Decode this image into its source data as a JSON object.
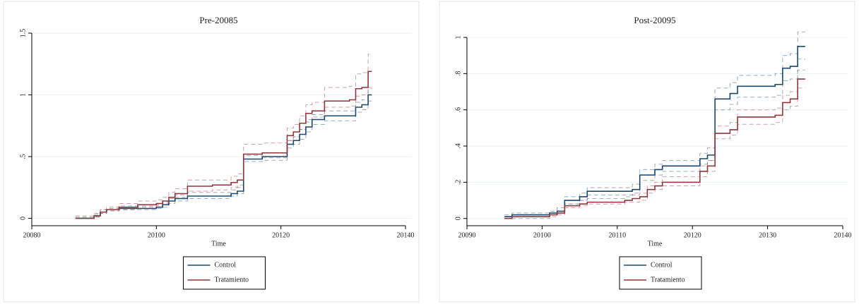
{
  "chart_data": [
    {
      "type": "line",
      "step": true,
      "title": "Pre-20085",
      "x_label": "Time",
      "xlim": [
        20080,
        20140
      ],
      "xticks": [
        20080,
        20100,
        20120,
        20140
      ],
      "ylim": [
        -0.06,
        1.5
      ],
      "yticks": [
        0,
        {
          "value": 0.5,
          "label": ".5"
        },
        1,
        1.5
      ],
      "grid": true,
      "x": [
        20087,
        20090,
        20091,
        20092,
        20094,
        20097,
        20100,
        20101,
        20102,
        20103,
        20105,
        20109,
        20112,
        20113,
        20114,
        20117,
        20121,
        20122,
        20123,
        20124,
        20125,
        20127,
        20131,
        20132,
        20133,
        20134,
        20134.6
      ],
      "series": [
        {
          "name": "Control",
          "color": "#1a476f",
          "values": [
            0,
            0.02,
            0.05,
            0.07,
            0.08,
            0.08,
            0.09,
            0.11,
            0.14,
            0.16,
            0.18,
            0.18,
            0.2,
            0.22,
            0.48,
            0.5,
            0.6,
            0.63,
            0.68,
            0.74,
            0.8,
            0.83,
            0.83,
            0.9,
            0.92,
            1.0,
            1.0
          ],
          "lower": [
            0,
            0.01,
            0.04,
            0.06,
            0.07,
            0.07,
            0.08,
            0.09,
            0.12,
            0.14,
            0.16,
            0.16,
            0.18,
            0.2,
            0.46,
            0.47,
            0.57,
            0.6,
            0.64,
            0.7,
            0.76,
            0.79,
            0.79,
            0.86,
            0.88,
            0.95,
            0.95
          ],
          "upper": [
            0.01,
            0.03,
            0.07,
            0.08,
            0.1,
            0.1,
            0.11,
            0.13,
            0.16,
            0.19,
            0.21,
            0.21,
            0.23,
            0.25,
            0.51,
            0.53,
            0.63,
            0.66,
            0.72,
            0.78,
            0.84,
            0.87,
            0.87,
            0.94,
            0.96,
            1.05,
            1.05
          ]
        },
        {
          "name": "Tratamiento",
          "color": "#90353b",
          "values": [
            0,
            0.02,
            0.05,
            0.07,
            0.09,
            0.11,
            0.12,
            0.14,
            0.17,
            0.2,
            0.26,
            0.27,
            0.29,
            0.31,
            0.52,
            0.53,
            0.67,
            0.7,
            0.77,
            0.85,
            0.87,
            0.95,
            0.96,
            1.05,
            1.06,
            1.19,
            1.19
          ],
          "lower": [
            0,
            0.01,
            0.04,
            0.06,
            0.07,
            0.09,
            0.1,
            0.12,
            0.14,
            0.17,
            0.22,
            0.23,
            0.25,
            0.27,
            0.48,
            0.49,
            0.63,
            0.66,
            0.72,
            0.8,
            0.82,
            0.9,
            0.91,
            0.99,
            1.0,
            1.06,
            1.06
          ],
          "upper": [
            0.02,
            0.04,
            0.07,
            0.09,
            0.12,
            0.14,
            0.15,
            0.17,
            0.21,
            0.24,
            0.31,
            0.31,
            0.34,
            0.36,
            0.6,
            0.61,
            0.73,
            0.76,
            0.83,
            0.92,
            0.94,
            1.06,
            1.07,
            1.17,
            1.18,
            1.33,
            1.33
          ]
        }
      ]
    },
    {
      "type": "line",
      "step": true,
      "title": "Post-20095",
      "x_label": "Time",
      "xlim": [
        20090,
        20140
      ],
      "xticks": [
        20090,
        20100,
        20110,
        20120,
        20130,
        20140
      ],
      "ylim": [
        -0.04,
        1.0
      ],
      "yticks": [
        0,
        {
          "value": 0.2,
          "label": ".2"
        },
        {
          "value": 0.4,
          "label": ".4"
        },
        {
          "value": 0.6,
          "label": ".6"
        },
        {
          "value": 0.8,
          "label": ".8"
        },
        1
      ],
      "grid": true,
      "x": [
        20095,
        20096,
        20100,
        20101,
        20102,
        20103,
        20104,
        20105,
        20106,
        20111,
        20112,
        20113,
        20114,
        20115,
        20116,
        20121,
        20122,
        20123,
        20124,
        20125,
        20126,
        20130,
        20131,
        20132,
        20133,
        20134,
        20135
      ],
      "series": [
        {
          "name": "Control",
          "color": "#1a476f",
          "values": [
            0.01,
            0.02,
            0.02,
            0.03,
            0.04,
            0.1,
            0.1,
            0.12,
            0.15,
            0.15,
            0.16,
            0.24,
            0.24,
            0.27,
            0.29,
            0.33,
            0.35,
            0.66,
            0.66,
            0.69,
            0.73,
            0.73,
            0.74,
            0.83,
            0.84,
            0.95,
            0.95
          ],
          "lower": [
            0,
            0.01,
            0.01,
            0.02,
            0.03,
            0.08,
            0.08,
            0.1,
            0.13,
            0.13,
            0.14,
            0.21,
            0.21,
            0.24,
            0.26,
            0.3,
            0.32,
            0.6,
            0.6,
            0.63,
            0.67,
            0.67,
            0.68,
            0.76,
            0.77,
            0.88,
            0.88
          ],
          "upper": [
            0.02,
            0.03,
            0.03,
            0.04,
            0.06,
            0.12,
            0.12,
            0.14,
            0.17,
            0.17,
            0.19,
            0.27,
            0.27,
            0.3,
            0.32,
            0.36,
            0.39,
            0.72,
            0.72,
            0.75,
            0.79,
            0.79,
            0.8,
            0.9,
            0.91,
            1.03,
            1.03
          ]
        },
        {
          "name": "Tratamiento",
          "color": "#90353b",
          "values": [
            0,
            0.01,
            0.01,
            0.02,
            0.03,
            0.07,
            0.07,
            0.08,
            0.09,
            0.1,
            0.11,
            0.12,
            0.16,
            0.18,
            0.2,
            0.26,
            0.29,
            0.47,
            0.47,
            0.49,
            0.56,
            0.56,
            0.57,
            0.64,
            0.66,
            0.77,
            0.77
          ],
          "lower": [
            0,
            0,
            0,
            0.01,
            0.02,
            0.06,
            0.06,
            0.07,
            0.08,
            0.09,
            0.09,
            0.1,
            0.14,
            0.16,
            0.18,
            0.23,
            0.26,
            0.44,
            0.44,
            0.46,
            0.52,
            0.52,
            0.53,
            0.6,
            0.62,
            0.72,
            0.72
          ],
          "upper": [
            0.01,
            0.02,
            0.02,
            0.03,
            0.04,
            0.08,
            0.08,
            0.1,
            0.11,
            0.12,
            0.13,
            0.14,
            0.18,
            0.2,
            0.23,
            0.29,
            0.32,
            0.51,
            0.51,
            0.53,
            0.6,
            0.6,
            0.61,
            0.68,
            0.7,
            0.82,
            0.82
          ]
        }
      ]
    }
  ]
}
